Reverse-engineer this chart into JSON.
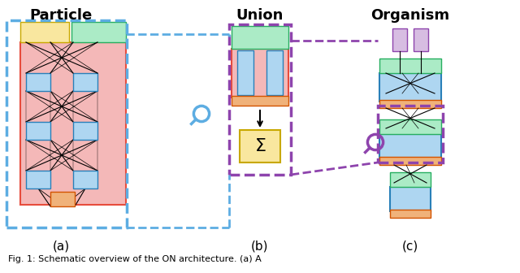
{
  "title_particle": "Particle",
  "title_union": "Union",
  "title_organism": "Organism",
  "label_a": "(a)",
  "label_b": "(b)",
  "label_c": "(c)",
  "caption": "Fig. 1: Schematic overview of the ON architecture. (a) A",
  "colors": {
    "pink": "#f4b8b8",
    "blue_light": "#aed6f1",
    "green_light": "#abebc6",
    "yellow": "#f9e79f",
    "orange": "#f0b27a",
    "purple_light": "#d7bde2",
    "white": "#ffffff",
    "dashed_blue": "#5dade2",
    "dashed_purple": "#8e44ad",
    "black": "#000000",
    "bg": "#ffffff"
  }
}
